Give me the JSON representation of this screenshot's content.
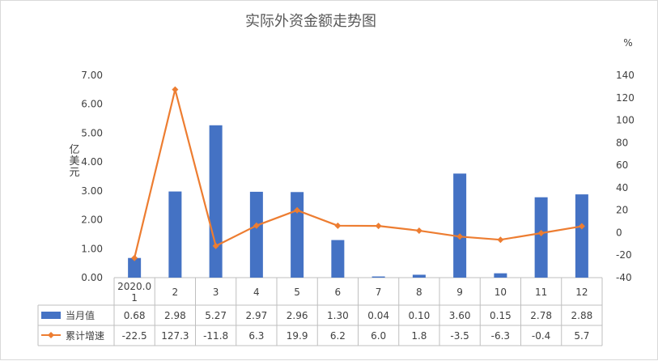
{
  "chart_data": {
    "type": "bar+line",
    "title": "实际外资金额走势图",
    "categories": [
      "2020.01",
      "2",
      "3",
      "4",
      "5",
      "6",
      "7",
      "8",
      "9",
      "10",
      "11",
      "12"
    ],
    "category_display": [
      [
        "2020.0",
        "1"
      ],
      [
        "2"
      ],
      [
        "3"
      ],
      [
        "4"
      ],
      [
        "5"
      ],
      [
        "6"
      ],
      [
        "7"
      ],
      [
        "8"
      ],
      [
        "9"
      ],
      [
        "10"
      ],
      [
        "11"
      ],
      [
        "12"
      ]
    ],
    "ylabel_left": "亿美元",
    "ylabel_left_chars": [
      "亿",
      "美",
      "元"
    ],
    "ylabel_right": "%",
    "ylim_left": [
      0,
      7
    ],
    "ylim_right": [
      -40,
      140
    ],
    "yticks_left": [
      "7.00",
      "6.00",
      "5.00",
      "4.00",
      "3.00",
      "2.00",
      "1.00",
      "0.00"
    ],
    "yticks_right": [
      "140",
      "120",
      "100",
      "80",
      "60",
      "40",
      "20",
      "0",
      "-20",
      "-40"
    ],
    "grid": false,
    "legend_position": "data-table",
    "series": [
      {
        "name": "当月值",
        "type": "bar",
        "axis": "left",
        "color": "#4472C4",
        "values": [
          0.68,
          2.98,
          5.27,
          2.97,
          2.96,
          1.3,
          0.04,
          0.1,
          3.6,
          0.15,
          2.78,
          2.88
        ],
        "labels": [
          "0.68",
          "2.98",
          "5.27",
          "2.97",
          "2.96",
          "1.30",
          "0.04",
          "0.10",
          "3.60",
          "0.15",
          "2.78",
          "2.88"
        ]
      },
      {
        "name": "累计增速",
        "type": "line",
        "axis": "right",
        "color": "#ED7D31",
        "values": [
          -22.5,
          127.3,
          -11.8,
          6.3,
          19.9,
          6.2,
          6.0,
          1.8,
          -3.5,
          -6.3,
          -0.4,
          5.7
        ],
        "labels": [
          "-22.5",
          "127.3",
          "-11.8",
          "6.3",
          "19.9",
          "6.2",
          "6.0",
          "1.8",
          "-3.5",
          "-6.3",
          "-0.4",
          "5.7"
        ]
      }
    ]
  }
}
